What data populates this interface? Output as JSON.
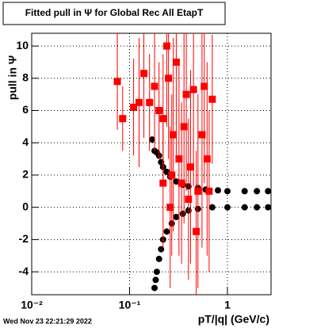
{
  "chart_data": {
    "type": "scatter",
    "title": "Fitted pull in  Ψ  for Global Rec All EtapT",
    "x_label": "pT/|q| (GeV/c)",
    "y_label": "pull in  Ψ",
    "timestamp": "Wed Nov 23 22:21:29 2022",
    "log_x": true,
    "grid": true,
    "xlim": [
      0.01,
      2.79
    ],
    "ylim": [
      -5.42,
      10.79
    ],
    "xticks": [
      {
        "value": 0.01,
        "label": "10⁻²"
      },
      {
        "value": 0.1,
        "label": "10⁻¹"
      },
      1
    ],
    "yticks": [
      -4,
      -2,
      0,
      2,
      4,
      6,
      8,
      10
    ],
    "series": [
      {
        "color": "#000000",
        "marker": "circle",
        "x": [
          0.17,
          0.18,
          0.19,
          0.2,
          0.21,
          0.22,
          0.24,
          0.26,
          0.3,
          0.35,
          0.4,
          0.5,
          0.6,
          0.8,
          1.0,
          1.5,
          2.0,
          2.6
        ],
        "values": [
          4.2,
          3.5,
          3.4,
          3.2,
          2.8,
          2.5,
          2.2,
          1.9,
          1.6,
          1.4,
          1.3,
          1.2,
          1.1,
          1.05,
          1.0,
          1.0,
          1.0,
          1.0
        ]
      },
      {
        "color": "#000000",
        "marker": "circle",
        "x": [
          0.18,
          0.185,
          0.19,
          0.2,
          0.21,
          0.22,
          0.24,
          0.27,
          0.3,
          0.35,
          0.4,
          0.5,
          0.7,
          1.0,
          1.5,
          2.0,
          2.6
        ],
        "values": [
          -5.0,
          -4.5,
          -4.0,
          -3.2,
          -2.6,
          -2.0,
          -1.5,
          -1.0,
          -0.6,
          -0.4,
          -0.2,
          -0.1,
          0,
          0,
          0,
          0,
          0
        ]
      },
      {
        "color": "#ff0000",
        "marker": "square",
        "x": [
          0.075,
          0.085,
          0.11,
          0.125,
          0.14,
          0.16,
          0.18,
          0.2,
          0.22,
          0.24,
          0.25,
          0.27,
          0.28,
          0.3,
          0.32,
          0.34,
          0.36,
          0.38,
          0.4,
          0.42,
          0.45,
          0.5,
          0.55,
          0.58,
          0.62,
          0.65,
          0.7,
          0.22,
          0.26,
          0.48
        ],
        "values": [
          7.8,
          5.5,
          6.2,
          6.5,
          8.3,
          6.5,
          7.5,
          6.0,
          5.5,
          10.0,
          8.0,
          2.0,
          4.5,
          9.0,
          3.0,
          1.5,
          5.0,
          7.0,
          0.5,
          2.5,
          7.3,
          1.0,
          4.5,
          7.5,
          3.0,
          1.0,
          6.7,
          1.5,
          0.0,
          -1.5
        ],
        "errors": [
          3,
          2,
          3,
          4,
          4,
          3,
          4,
          3,
          4,
          5,
          5,
          5,
          6,
          6,
          6,
          5,
          6,
          6,
          5,
          6,
          6,
          6,
          7,
          6,
          6,
          5,
          4,
          4,
          5,
          5
        ]
      }
    ]
  }
}
